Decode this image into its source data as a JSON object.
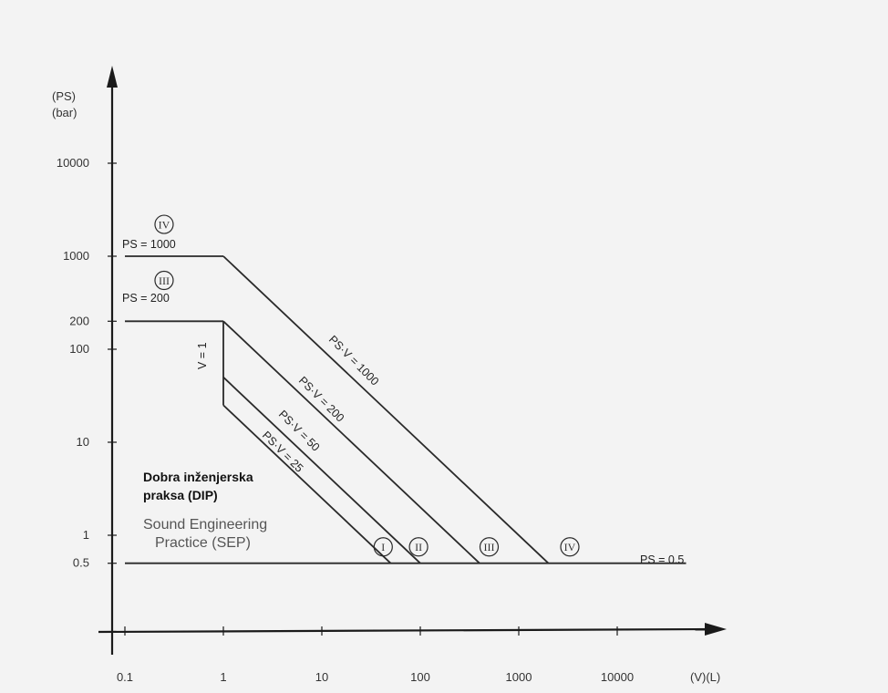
{
  "chart_data": {
    "type": "line",
    "x_scale": "log",
    "y_scale": "log",
    "xlabel": "(V)(L)",
    "ylabel": [
      "(PS)",
      "(bar)"
    ],
    "x_ticks": [
      0.1,
      1,
      10,
      100,
      1000,
      10000
    ],
    "x_tick_labels": [
      "0.1",
      "1",
      "10",
      "100",
      "1000",
      "10000"
    ],
    "y_ticks": [
      0.5,
      1,
      10,
      100,
      200,
      1000,
      10000
    ],
    "y_tick_labels": [
      "0.5",
      "1",
      "10",
      "100",
      "200",
      "1000",
      "10000"
    ],
    "grid": false,
    "boundary_lines": [
      {
        "name": "PS = 1000",
        "points": [
          [
            0.1,
            1000
          ],
          [
            1,
            1000
          ]
        ]
      },
      {
        "name": "PS = 200",
        "points": [
          [
            0.1,
            200
          ],
          [
            1,
            200
          ]
        ]
      },
      {
        "name": "V = 1",
        "points": [
          [
            1,
            200
          ],
          [
            1,
            25
          ]
        ]
      },
      {
        "name": "PS·V = 1000",
        "points": [
          [
            1,
            1000
          ],
          [
            2000,
            0.5
          ]
        ]
      },
      {
        "name": "PS·V = 200",
        "points": [
          [
            1,
            200
          ],
          [
            400,
            0.5
          ]
        ]
      },
      {
        "name": "PS·V = 50",
        "points": [
          [
            1,
            50
          ],
          [
            100,
            0.5
          ]
        ]
      },
      {
        "name": "PS·V = 25",
        "points": [
          [
            1,
            25
          ],
          [
            50,
            0.5
          ]
        ]
      },
      {
        "name": "PS = 0.5",
        "points": [
          [
            0.1,
            0.5
          ],
          [
            50000,
            0.5
          ]
        ]
      }
    ],
    "category_markers": [
      "I",
      "II",
      "III",
      "IV"
    ],
    "category_marker_positions": [
      {
        "label": "IV",
        "x": 0.25,
        "y": 2200
      },
      {
        "label": "III",
        "x": 0.25,
        "y": 550
      },
      {
        "label": "I",
        "x": 42,
        "y": 0.75
      },
      {
        "label": "II",
        "x": 96,
        "y": 0.75
      },
      {
        "label": "III",
        "x": 500,
        "y": 0.75
      },
      {
        "label": "IV",
        "x": 3300,
        "y": 0.75
      }
    ],
    "annotations": {
      "ps1000": "PS = 1000",
      "ps200": "PS = 200",
      "v1": "V = 1",
      "psv1000": "PS·V = 1000",
      "psv200": "PS·V = 200",
      "psv50": "PS·V = 50",
      "psv25": "PS·V = 25",
      "ps05": "PS = 0.5",
      "dip_line1": "Dobra inženjerska",
      "dip_line2": "praksa (DIP)",
      "sep_line1": "Sound Engineering",
      "sep_line2": "Practice (SEP)"
    }
  },
  "colors": {
    "background": "#f3f3f3",
    "axis": "#1a1a1a",
    "line": "#2a2a2a"
  }
}
